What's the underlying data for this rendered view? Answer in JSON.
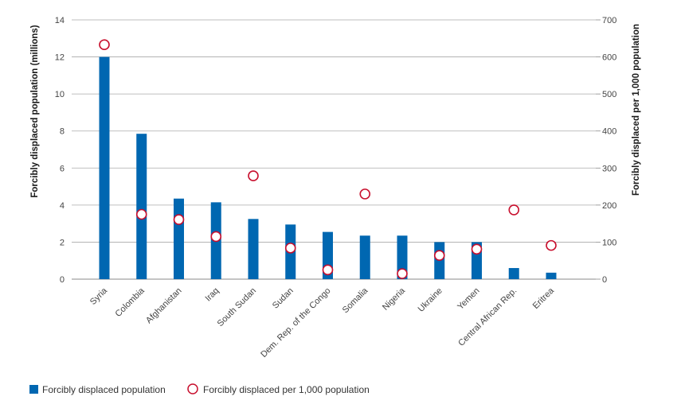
{
  "chart_data": {
    "type": "bar",
    "categories": [
      "Syria",
      "Colombia",
      "Afghanistan",
      "Iraq",
      "South Sudan",
      "Sudan",
      "Dem. Rep. of the Congo",
      "Somalia",
      "Nigeria",
      "Ukraine",
      "Yemen",
      "Central African Rep.",
      "Eritrea"
    ],
    "series": [
      {
        "name": "Forcibly displaced population",
        "type": "bar",
        "axis": "left",
        "values": [
          12.0,
          7.85,
          4.35,
          4.15,
          3.25,
          2.95,
          2.55,
          2.35,
          2.35,
          2.0,
          2.0,
          0.6,
          0.35
        ]
      },
      {
        "name": "Forcibly displaced per 1,000 population",
        "type": "scatter",
        "marker": "circle-open",
        "axis": "right",
        "values": [
          633,
          175,
          161,
          115,
          279,
          84,
          25,
          230,
          15,
          64,
          81,
          187,
          91
        ]
      }
    ],
    "ylabel": "Forcibly displaced population (millions)",
    "y2label": "Forcibly displaced per 1,000 population",
    "ylim": [
      0,
      14
    ],
    "y2lim": [
      0,
      700
    ],
    "yticks": [
      "0",
      "2",
      "4",
      "6",
      "8",
      "10",
      "12",
      "14"
    ],
    "y2ticks": [
      "0",
      "100",
      "200",
      "300",
      "400",
      "500",
      "600",
      "700"
    ],
    "grid": true,
    "legend_position": "bottom-left",
    "colors": {
      "bar": "#0067b1",
      "marker": "#c8102e",
      "grid": "#aaaaaa",
      "axis": "#888888"
    }
  }
}
